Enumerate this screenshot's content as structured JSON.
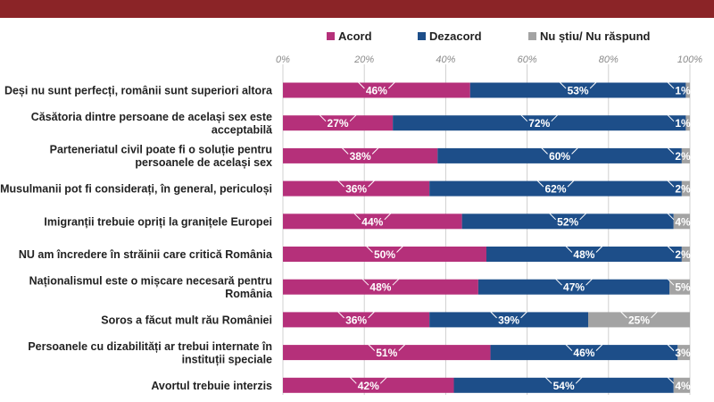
{
  "chart_data": {
    "type": "bar",
    "orientation": "horizontal",
    "stacked": true,
    "x_unit": "%",
    "xlim": [
      0,
      100
    ],
    "x_ticks": [
      "0%",
      "20%",
      "40%",
      "60%",
      "80%",
      "100%"
    ],
    "grid": true,
    "legend_position": "top",
    "categories": [
      [
        "Deși nu sunt perfecți,  românii sunt superiori altora"
      ],
      [
        "Căsătoria dintre persoane de același sex este",
        "acceptabilă"
      ],
      [
        "Parteneriatul civil poate fi o soluție pentru",
        "persoanele de același sex"
      ],
      [
        "Musulmanii pot fi considerați, în general, periculoși"
      ],
      [
        "Imigranții trebuie opriți la granițele Europei"
      ],
      [
        "NU am încredere în străinii care critică România"
      ],
      [
        "Naționalismul este o mișcare necesară pentru",
        "România"
      ],
      [
        "Soros a făcut mult rău României"
      ],
      [
        "Persoanele cu dizabilități ar trebui internate în",
        "instituții speciale"
      ],
      [
        "Avortul trebuie interzis"
      ]
    ],
    "series": [
      {
        "name": "Acord",
        "color": "#b5307a",
        "values": [
          46,
          27,
          38,
          36,
          44,
          50,
          48,
          36,
          51,
          42
        ],
        "labels": [
          "46%",
          "27%",
          "38%",
          "36%",
          "44%",
          "50%",
          "48%",
          "36%",
          "51%",
          "42%"
        ]
      },
      {
        "name": "Dezacord",
        "color": "#1d4e89",
        "values": [
          53,
          72,
          60,
          62,
          52,
          48,
          47,
          39,
          46,
          54
        ],
        "labels": [
          "53%",
          "72%",
          "60%",
          "62%",
          "52%",
          "48%",
          "47%",
          "39%",
          "46%",
          "54%"
        ]
      },
      {
        "name": "Nu știu/ Nu răspund",
        "color": "#a3a3a3",
        "values": [
          1,
          1,
          2,
          2,
          4,
          2,
          5,
          25,
          3,
          4
        ],
        "labels": [
          "1%",
          "1%",
          "2%",
          "2%",
          "4%",
          "2%",
          "5%",
          "25%",
          "3%",
          "4%"
        ]
      }
    ]
  }
}
